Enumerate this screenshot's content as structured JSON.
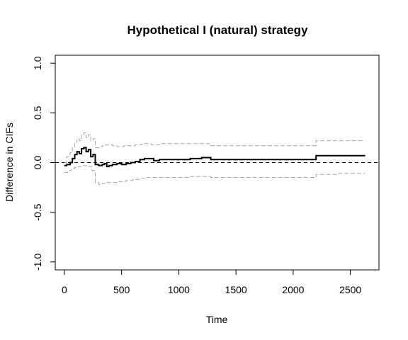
{
  "chart_data": {
    "type": "line",
    "title": "Hypothetical I (natural) strategy",
    "xlabel": "Time",
    "ylabel": "Difference in CIFs",
    "xlim": [
      -80,
      2750
    ],
    "ylim": [
      -1.08,
      1.08
    ],
    "x_ticks": [
      0,
      500,
      1000,
      1500,
      2000,
      2500
    ],
    "x_tick_labels": [
      "0",
      "500",
      "1000",
      "1500",
      "2000",
      "2500"
    ],
    "y_ticks": [
      -1.0,
      -0.5,
      0.0,
      0.5,
      1.0
    ],
    "y_tick_labels": [
      "-1.0",
      "-0.5",
      "0.0",
      "0.5",
      "1.0"
    ],
    "reference_line": {
      "y": 0,
      "style": "dashed",
      "color": "#000000"
    },
    "colors": {
      "estimate": "#000000",
      "bounds": "#a6a6a6"
    },
    "series": [
      {
        "role": "estimate",
        "style": "step-solid",
        "points": [
          [
            0,
            -0.03
          ],
          [
            20,
            -0.02
          ],
          [
            50,
            0.0
          ],
          [
            70,
            0.04
          ],
          [
            90,
            0.08
          ],
          [
            110,
            0.11
          ],
          [
            130,
            0.09
          ],
          [
            150,
            0.14
          ],
          [
            170,
            0.15
          ],
          [
            190,
            0.11
          ],
          [
            210,
            0.13
          ],
          [
            230,
            0.06
          ],
          [
            250,
            0.08
          ],
          [
            270,
            -0.02
          ],
          [
            300,
            -0.03
          ],
          [
            330,
            -0.02
          ],
          [
            350,
            -0.01
          ],
          [
            370,
            -0.04
          ],
          [
            390,
            -0.03
          ],
          [
            420,
            -0.02
          ],
          [
            460,
            -0.01
          ],
          [
            500,
            -0.02
          ],
          [
            540,
            -0.01
          ],
          [
            580,
            0.0
          ],
          [
            620,
            0.01
          ],
          [
            660,
            0.03
          ],
          [
            700,
            0.04
          ],
          [
            740,
            0.04
          ],
          [
            780,
            0.02
          ],
          [
            830,
            0.03
          ],
          [
            900,
            0.03
          ],
          [
            1000,
            0.03
          ],
          [
            1100,
            0.04
          ],
          [
            1150,
            0.04
          ],
          [
            1200,
            0.05
          ],
          [
            1280,
            0.03
          ],
          [
            1400,
            0.03
          ],
          [
            1600,
            0.03
          ],
          [
            1800,
            0.03
          ],
          [
            2000,
            0.03
          ],
          [
            2200,
            0.07
          ],
          [
            2400,
            0.07
          ],
          [
            2630,
            0.07
          ]
        ]
      },
      {
        "role": "upper-bound",
        "style": "step-dashed",
        "points": [
          [
            0,
            0.0
          ],
          [
            20,
            0.06
          ],
          [
            50,
            0.1
          ],
          [
            70,
            0.16
          ],
          [
            90,
            0.2
          ],
          [
            110,
            0.24
          ],
          [
            130,
            0.22
          ],
          [
            150,
            0.28
          ],
          [
            170,
            0.3
          ],
          [
            190,
            0.25
          ],
          [
            210,
            0.28
          ],
          [
            230,
            0.22
          ],
          [
            250,
            0.24
          ],
          [
            270,
            0.15
          ],
          [
            300,
            0.16
          ],
          [
            330,
            0.17
          ],
          [
            360,
            0.18
          ],
          [
            420,
            0.17
          ],
          [
            460,
            0.16
          ],
          [
            520,
            0.17
          ],
          [
            560,
            0.17
          ],
          [
            620,
            0.18
          ],
          [
            680,
            0.19
          ],
          [
            760,
            0.18
          ],
          [
            840,
            0.19
          ],
          [
            900,
            0.19
          ],
          [
            1100,
            0.19
          ],
          [
            1280,
            0.17
          ],
          [
            1500,
            0.17
          ],
          [
            1800,
            0.17
          ],
          [
            2000,
            0.17
          ],
          [
            2200,
            0.22
          ],
          [
            2400,
            0.22
          ],
          [
            2630,
            0.22
          ]
        ]
      },
      {
        "role": "lower-bound",
        "style": "step-dashed",
        "points": [
          [
            0,
            -0.1
          ],
          [
            30,
            -0.08
          ],
          [
            60,
            -0.06
          ],
          [
            90,
            -0.05
          ],
          [
            120,
            -0.04
          ],
          [
            160,
            -0.03
          ],
          [
            200,
            -0.04
          ],
          [
            240,
            -0.08
          ],
          [
            270,
            -0.2
          ],
          [
            300,
            -0.22
          ],
          [
            330,
            -0.21
          ],
          [
            360,
            -0.2
          ],
          [
            420,
            -0.2
          ],
          [
            460,
            -0.19
          ],
          [
            540,
            -0.18
          ],
          [
            600,
            -0.17
          ],
          [
            660,
            -0.16
          ],
          [
            720,
            -0.15
          ],
          [
            800,
            -0.15
          ],
          [
            900,
            -0.15
          ],
          [
            1100,
            -0.14
          ],
          [
            1280,
            -0.15
          ],
          [
            1500,
            -0.15
          ],
          [
            1800,
            -0.15
          ],
          [
            2000,
            -0.15
          ],
          [
            2200,
            -0.12
          ],
          [
            2400,
            -0.11
          ],
          [
            2630,
            -0.11
          ]
        ]
      }
    ]
  }
}
